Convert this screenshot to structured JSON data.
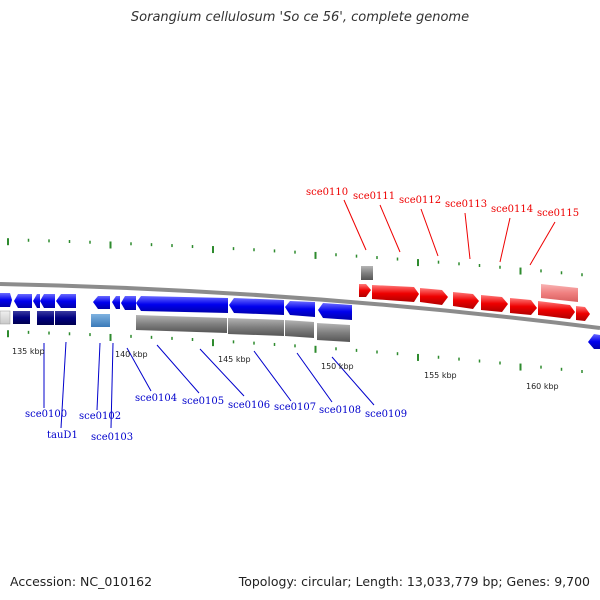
{
  "title": "Sorangium cellulosum 'So ce 56', complete genome",
  "accession": "Accession: NC_010162",
  "summary": "Topology: circular; Length: 13,033,779 bp; Genes: 9,700",
  "colors": {
    "forward_gene": "#0000ee",
    "forward_gene_dark": "#000080",
    "reverse_gene": "#ee0000",
    "reverse_gene_light": "#f08080",
    "other_feature": "#808080",
    "tick": "#2e8b2e",
    "backbone": "#8c8c8c"
  },
  "scale_labels": [
    "135 kbp",
    "140 kbp",
    "145 kbp",
    "150 kbp",
    "155 kbp",
    "160 kbp"
  ],
  "blue_labels": [
    "sce0100",
    "tauD1",
    "sce0102",
    "sce0103",
    "sce0104",
    "sce0105",
    "sce0106",
    "sce0107",
    "sce0108",
    "sce0109"
  ],
  "red_labels": [
    "sce0110",
    "sce0111",
    "sce0112",
    "sce0113",
    "sce0114",
    "sce0115"
  ]
}
